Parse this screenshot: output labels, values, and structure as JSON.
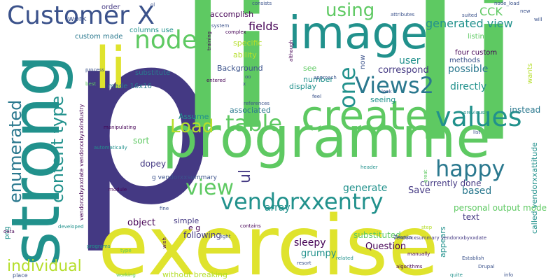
{
  "colors": {
    "background": "#ffffff",
    "yellow": "#dfe32d",
    "lime": "#b5de2b",
    "green": "#5ec962",
    "teal_green": "#21a585",
    "teal": "#21918c",
    "blue_teal": "#2a788e",
    "blue": "#3b528b",
    "indigo": "#443983",
    "purple": "#440154"
  },
  "words": [
    {
      "text": "p",
      "color": "indigo"
    },
    {
      "text": "li",
      "color": "green"
    },
    {
      "text": "li",
      "color": "green"
    },
    {
      "text": "exercise",
      "color": "yellow"
    },
    {
      "text": "programme",
      "color": "green"
    },
    {
      "text": "image",
      "color": "teal"
    },
    {
      "text": "strong",
      "color": "teal"
    },
    {
      "text": "create",
      "color": "green"
    },
    {
      "text": "li",
      "color": "yellow"
    },
    {
      "text": "Customer X",
      "color": "blue"
    },
    {
      "text": "node",
      "color": "green"
    },
    {
      "text": "Views2",
      "color": "blue_teal"
    },
    {
      "text": "table",
      "color": "green"
    },
    {
      "text": "values",
      "color": "teal"
    },
    {
      "text": "happy",
      "color": "blue_teal"
    },
    {
      "text": "vendorxxentry",
      "color": "teal"
    },
    {
      "text": "view",
      "color": "green"
    },
    {
      "text": "Load",
      "color": "lime"
    },
    {
      "text": "using",
      "color": "green"
    },
    {
      "text": "one",
      "color": "teal"
    },
    {
      "text": "enumerated",
      "color": "blue_teal"
    },
    {
      "text": "content type",
      "color": "teal"
    },
    {
      "text": "individual",
      "color": "lime"
    },
    {
      "text": "generated view",
      "color": "teal"
    },
    {
      "text": "fields",
      "color": "purple"
    },
    {
      "text": "CCK",
      "color": "green"
    },
    {
      "text": "ul",
      "color": "indigo"
    },
    {
      "text": "possible",
      "color": "blue_teal"
    },
    {
      "text": "directly",
      "color": "teal"
    },
    {
      "text": "user",
      "color": "teal"
    },
    {
      "text": "correspond",
      "color": "indigo"
    },
    {
      "text": "personal output mode",
      "color": "green"
    },
    {
      "text": "based",
      "color": "blue_teal"
    },
    {
      "text": "generate",
      "color": "teal"
    },
    {
      "text": "array",
      "color": "teal"
    },
    {
      "text": "Save",
      "color": "indigo"
    },
    {
      "text": "currently done",
      "color": "indigo"
    },
    {
      "text": "instead",
      "color": "blue_teal"
    },
    {
      "text": "called vendorxxattitude",
      "color": "teal"
    },
    {
      "text": "Question",
      "color": "purple"
    },
    {
      "text": "sleepy",
      "color": "purple"
    },
    {
      "text": "grumpy",
      "color": "teal"
    },
    {
      "text": "substituted",
      "color": "green"
    },
    {
      "text": "text",
      "color": "indigo"
    },
    {
      "text": "following",
      "color": "indigo"
    },
    {
      "text": "object",
      "color": "purple"
    },
    {
      "text": "simple",
      "color": "indigo"
    },
    {
      "text": "e g",
      "color": "purple"
    },
    {
      "text": "dopey",
      "color": "indigo"
    },
    {
      "text": "sort",
      "color": "green"
    },
    {
      "text": "Assume",
      "color": "teal"
    },
    {
      "text": "associated",
      "color": "blue_teal"
    },
    {
      "text": "seeing",
      "color": "teal"
    },
    {
      "text": "display",
      "color": "teal"
    },
    {
      "text": "number",
      "color": "teal"
    },
    {
      "text": "see",
      "color": "green"
    },
    {
      "text": "Background",
      "color": "blue"
    },
    {
      "text": "ability",
      "color": "lime"
    },
    {
      "text": "specific",
      "color": "lime"
    },
    {
      "text": "accomplish",
      "color": "purple"
    },
    {
      "text": "columns use",
      "color": "teal"
    },
    {
      "text": "custom made",
      "color": "blue_teal"
    },
    {
      "text": "substitute",
      "color": "blue_teal"
    },
    {
      "text": "made 16x16",
      "color": "blue_teal"
    },
    {
      "text": "work",
      "color": "blue"
    },
    {
      "text": "order",
      "color": "indigo"
    },
    {
      "text": "four custom",
      "color": "purple"
    },
    {
      "text": "methods",
      "color": "blue"
    },
    {
      "text": "listing",
      "color": "green"
    },
    {
      "text": "wants",
      "color": "lime"
    },
    {
      "text": "appears",
      "color": "teal"
    },
    {
      "text": "without breaking",
      "color": "lime"
    },
    {
      "text": "g vendorxxsummary",
      "color": "blue"
    },
    {
      "text": "png",
      "color": "teal"
    },
    {
      "text": "place",
      "color": "blue"
    },
    {
      "text": "vendorxxbyxxdate vendorxxbyxxindustry",
      "color": "purple"
    },
    {
      "text": "vendorxxsummary vendorxxbyxxdate",
      "color": "indigo"
    },
    {
      "text": "Thanks",
      "color": "blue"
    },
    {
      "text": "Establish",
      "color": "blue"
    },
    {
      "text": "manually",
      "color": "purple"
    },
    {
      "text": "algorithms",
      "color": "purple"
    },
    {
      "text": "Drupal",
      "color": "blue"
    },
    {
      "text": "info",
      "color": "blue"
    },
    {
      "text": "quite",
      "color": "teal"
    },
    {
      "text": "related",
      "color": "teal"
    },
    {
      "text": "resort",
      "color": "blue"
    },
    {
      "text": "working",
      "color": "green"
    },
    {
      "text": "type",
      "color": "green"
    },
    {
      "text": "programs",
      "color": "teal"
    },
    {
      "text": "wish",
      "color": "purple"
    },
    {
      "text": "developed",
      "color": "teal"
    },
    {
      "text": "data",
      "color": "purple"
    },
    {
      "text": "fine",
      "color": "blue"
    },
    {
      "text": "right",
      "color": "blue"
    },
    {
      "text": "contains",
      "color": "purple"
    },
    {
      "text": "header",
      "color": "teal"
    },
    {
      "text": "step",
      "color": "lime"
    },
    {
      "text": "great",
      "color": "green"
    },
    {
      "text": "list",
      "color": "blue"
    },
    {
      "text": "previously",
      "color": "teal"
    },
    {
      "text": "module",
      "color": "purple"
    },
    {
      "text": "automatically",
      "color": "teal"
    },
    {
      "text": "manipulating",
      "color": "purple"
    },
    {
      "text": "references",
      "color": "blue"
    },
    {
      "text": "feel",
      "color": "blue"
    },
    {
      "text": "x",
      "color": "blue"
    },
    {
      "text": "oo",
      "color": "blue"
    },
    {
      "text": "entered",
      "color": "purple"
    },
    {
      "text": "approach",
      "color": "blue"
    },
    {
      "text": "although",
      "color": "purple"
    },
    {
      "text": "look",
      "color": "blue"
    },
    {
      "text": "process",
      "color": "blue"
    },
    {
      "text": "best",
      "color": "green"
    },
    {
      "text": "now",
      "color": "blue"
    },
    {
      "text": "ol",
      "color": "blue"
    },
    {
      "text": "consists",
      "color": "blue"
    },
    {
      "text": "system",
      "color": "blue"
    },
    {
      "text": "complex",
      "color": "purple"
    },
    {
      "text": "training",
      "color": "purple"
    },
    {
      "text": "attributes",
      "color": "blue"
    },
    {
      "text": "node_load",
      "color": "blue"
    },
    {
      "text": "suited",
      "color": "blue"
    },
    {
      "text": "new",
      "color": "blue"
    },
    {
      "text": "will",
      "color": "blue"
    },
    {
      "text": "set",
      "color": "green"
    }
  ]
}
